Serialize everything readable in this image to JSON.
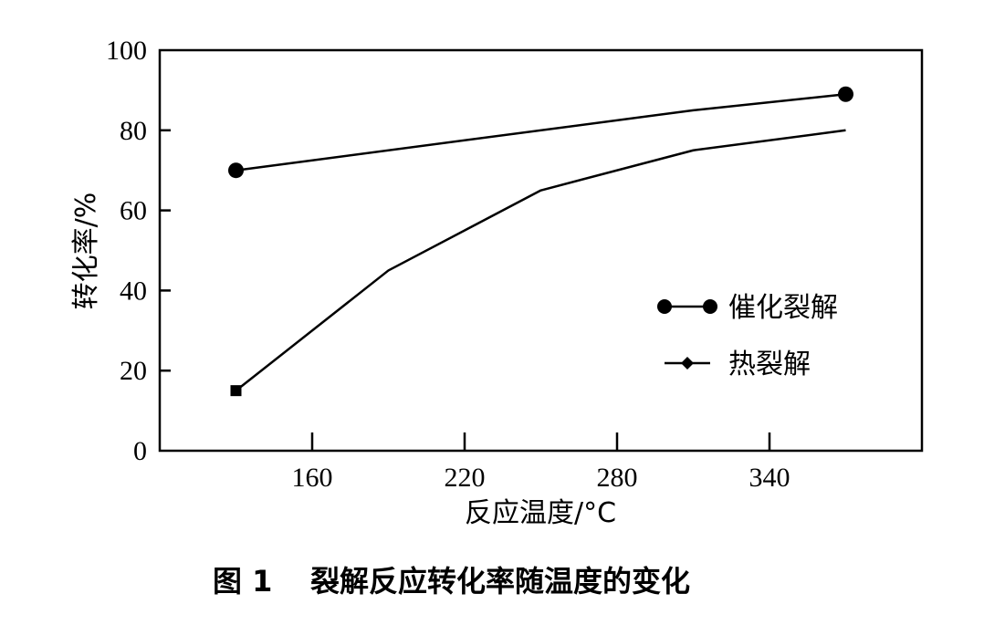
{
  "chart_data": {
    "type": "line",
    "xlabel": "反应温度/°C",
    "ylabel": "转化率/%",
    "caption_number": "图 1",
    "caption_text": "裂解反应转化率随温度的变化",
    "xlim": [
      100,
      400
    ],
    "ylim": [
      0,
      100
    ],
    "x_ticks": [
      160,
      220,
      280,
      340
    ],
    "y_ticks": [
      0,
      20,
      40,
      60,
      80,
      100
    ],
    "grid": false,
    "legend_position": "right-center",
    "series": [
      {
        "name": "催化裂解",
        "marker": "circle",
        "x": [
          130,
          370
        ],
        "y": [
          70,
          89
        ],
        "line_x": [
          130,
          310,
          370
        ],
        "line_y": [
          70,
          85,
          89
        ]
      },
      {
        "name": "热裂解",
        "marker": "diamond",
        "x": [
          130,
          370
        ],
        "y": [
          15,
          80
        ],
        "line_x": [
          130,
          190,
          250,
          310,
          370
        ],
        "line_y": [
          15,
          45,
          65,
          75,
          80
        ]
      }
    ]
  }
}
